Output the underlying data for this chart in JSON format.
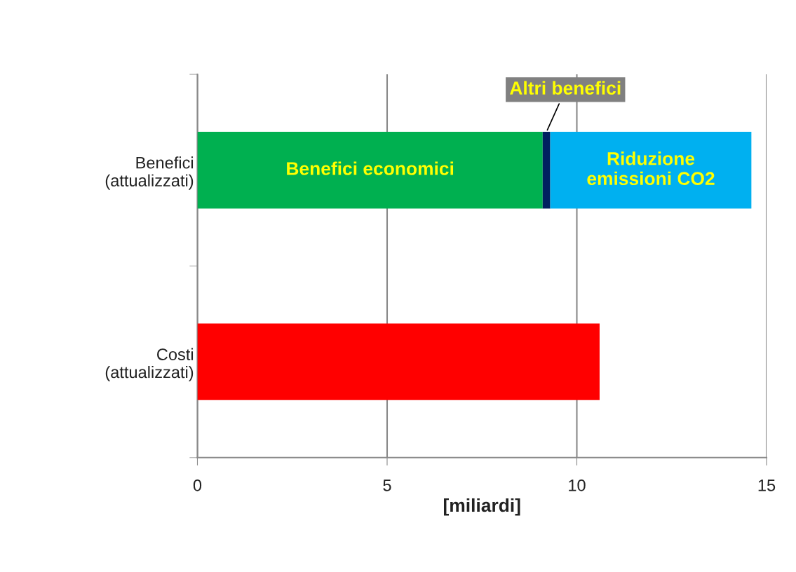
{
  "chart_data": {
    "type": "bar",
    "orientation": "horizontal",
    "stacked": true,
    "categories": [
      "Benefici\n(attualizzati)",
      "Costi\n(attualizzati)"
    ],
    "xlabel": "[miliardi]",
    "series": [
      {
        "name": "Benefici economici",
        "color": "#00b050",
        "values": [
          9.1,
          null
        ]
      },
      {
        "name": "Altri benefici",
        "color": "#002060",
        "values": [
          0.2,
          null
        ]
      },
      {
        "name": "Riduzione\nemissioni CO2",
        "color": "#00b0f0",
        "values": [
          5.3,
          null
        ]
      },
      {
        "color": "#ff0000",
        "values": [
          null,
          10.6
        ]
      }
    ],
    "xlim": [
      0,
      15
    ],
    "xticks": [
      0,
      5,
      10,
      15
    ],
    "grid": "x"
  }
}
